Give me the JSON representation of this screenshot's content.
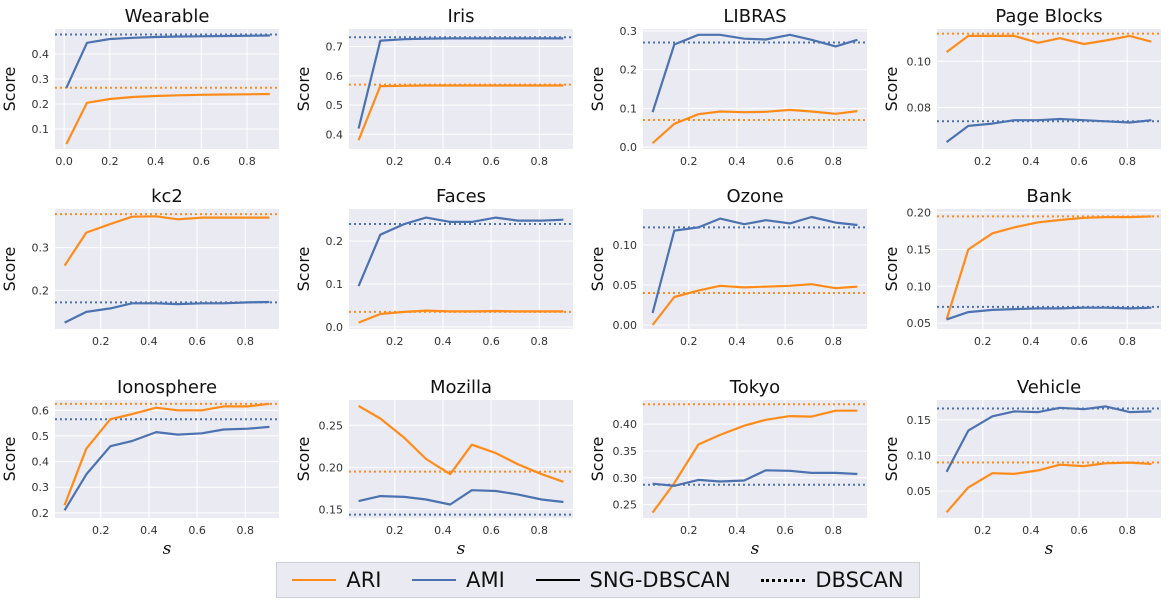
{
  "colors": {
    "ARI": "#ff8c1a",
    "AMI": "#4c72b0",
    "panel_bg": "#eaeaf2",
    "grid": "#ffffff"
  },
  "legend": {
    "entries": [
      {
        "label": "ARI",
        "color": "#ff8c1a",
        "style": "solid"
      },
      {
        "label": "AMI",
        "color": "#4c72b0",
        "style": "solid"
      },
      {
        "label": "SNG-DBSCAN",
        "color": "#000000",
        "style": "solid"
      },
      {
        "label": "DBSCAN",
        "color": "#000000",
        "style": "dotted"
      }
    ]
  },
  "chart_data": [
    {
      "type": "line",
      "title": "Wearable",
      "ylabel": "Score",
      "xlabel": "",
      "xlim": [
        -0.04,
        0.94
      ],
      "ylim": [
        0.02,
        0.5
      ],
      "xticks": [
        0.0,
        0.2,
        0.4,
        0.6,
        0.8
      ],
      "xtick_labels": [
        "0.0",
        "0.2",
        "0.4",
        "0.6",
        "0.8"
      ],
      "yticks": [
        0.1,
        0.2,
        0.3,
        0.4
      ],
      "ytick_labels": [
        "0.1",
        "0.2",
        "0.3",
        "0.4"
      ],
      "x": [
        0.01,
        0.1,
        0.2,
        0.3,
        0.4,
        0.5,
        0.6,
        0.7,
        0.8,
        0.9
      ],
      "series": [
        {
          "name": "ARI",
          "values": [
            0.04,
            0.205,
            0.22,
            0.228,
            0.232,
            0.235,
            0.237,
            0.238,
            0.239,
            0.24
          ]
        },
        {
          "name": "AMI",
          "values": [
            0.265,
            0.445,
            0.46,
            0.465,
            0.468,
            0.47,
            0.471,
            0.472,
            0.473,
            0.474
          ]
        }
      ],
      "dbscan": {
        "ARI": 0.265,
        "AMI": 0.478
      }
    },
    {
      "type": "line",
      "title": "Iris",
      "ylabel": "Score",
      "xlabel": "",
      "xlim": [
        0.01,
        0.94
      ],
      "ylim": [
        0.35,
        0.76
      ],
      "xticks": [
        0.2,
        0.4,
        0.6,
        0.8
      ],
      "xtick_labels": [
        "0.2",
        "0.4",
        "0.6",
        "0.8"
      ],
      "yticks": [
        0.4,
        0.5,
        0.6,
        0.7
      ],
      "ytick_labels": [
        "0.4",
        "0.5",
        "0.6",
        "0.7"
      ],
      "x": [
        0.05,
        0.14,
        0.24,
        0.33,
        0.43,
        0.52,
        0.62,
        0.71,
        0.81,
        0.9
      ],
      "series": [
        {
          "name": "ARI",
          "values": [
            0.38,
            0.565,
            0.566,
            0.567,
            0.567,
            0.567,
            0.567,
            0.567,
            0.567,
            0.567
          ]
        },
        {
          "name": "AMI",
          "values": [
            0.42,
            0.72,
            0.725,
            0.727,
            0.728,
            0.728,
            0.728,
            0.728,
            0.728,
            0.728
          ]
        }
      ],
      "dbscan": {
        "ARI": 0.57,
        "AMI": 0.732
      }
    },
    {
      "type": "line",
      "title": "LIBRAS",
      "ylabel": "Score",
      "xlabel": "",
      "xlim": [
        0.01,
        0.94
      ],
      "ylim": [
        -0.005,
        0.305
      ],
      "xticks": [
        0.2,
        0.4,
        0.6,
        0.8
      ],
      "xtick_labels": [
        "0.2",
        "0.4",
        "0.6",
        "0.8"
      ],
      "yticks": [
        0.0,
        0.1,
        0.2,
        0.3
      ],
      "ytick_labels": [
        "0.0",
        "0.1",
        "0.2",
        "0.3"
      ],
      "x": [
        0.05,
        0.14,
        0.24,
        0.33,
        0.43,
        0.52,
        0.62,
        0.71,
        0.81,
        0.9
      ],
      "series": [
        {
          "name": "ARI",
          "values": [
            0.01,
            0.06,
            0.085,
            0.092,
            0.09,
            0.091,
            0.096,
            0.092,
            0.086,
            0.093
          ]
        },
        {
          "name": "AMI",
          "values": [
            0.09,
            0.265,
            0.29,
            0.29,
            0.28,
            0.278,
            0.29,
            0.277,
            0.26,
            0.277
          ]
        }
      ],
      "dbscan": {
        "ARI": 0.07,
        "AMI": 0.27
      }
    },
    {
      "type": "line",
      "title": "Page Blocks",
      "ylabel": "Score",
      "xlabel": "",
      "xlim": [
        0.01,
        0.94
      ],
      "ylim": [
        0.062,
        0.114
      ],
      "xticks": [
        0.2,
        0.4,
        0.6,
        0.8
      ],
      "xtick_labels": [
        "0.2",
        "0.4",
        "0.6",
        "0.8"
      ],
      "yticks": [
        0.08,
        0.1
      ],
      "ytick_labels": [
        "0.08",
        "0.10"
      ],
      "x": [
        0.05,
        0.14,
        0.24,
        0.33,
        0.43,
        0.52,
        0.62,
        0.71,
        0.81,
        0.9
      ],
      "series": [
        {
          "name": "ARI",
          "values": [
            0.104,
            0.111,
            0.111,
            0.111,
            0.108,
            0.11,
            0.1075,
            0.109,
            0.111,
            0.1085
          ]
        },
        {
          "name": "AMI",
          "values": [
            0.065,
            0.072,
            0.073,
            0.0745,
            0.0745,
            0.075,
            0.0745,
            0.074,
            0.0735,
            0.0745
          ]
        }
      ],
      "dbscan": {
        "ARI": 0.112,
        "AMI": 0.074
      }
    },
    {
      "type": "line",
      "title": "kc2",
      "ylabel": "Score",
      "xlabel": "",
      "xlim": [
        0.01,
        0.94
      ],
      "ylim": [
        0.11,
        0.39
      ],
      "xticks": [
        0.2,
        0.4,
        0.6,
        0.8
      ],
      "xtick_labels": [
        "0.2",
        "0.4",
        "0.6",
        "0.8"
      ],
      "yticks": [
        0.2,
        0.3
      ],
      "ytick_labels": [
        "0.2",
        "0.3"
      ],
      "x": [
        0.05,
        0.14,
        0.24,
        0.33,
        0.43,
        0.52,
        0.62,
        0.71,
        0.81,
        0.9
      ],
      "series": [
        {
          "name": "ARI",
          "values": [
            0.258,
            0.335,
            0.355,
            0.372,
            0.373,
            0.366,
            0.37,
            0.37,
            0.37,
            0.37
          ]
        },
        {
          "name": "AMI",
          "values": [
            0.125,
            0.15,
            0.158,
            0.17,
            0.17,
            0.168,
            0.17,
            0.17,
            0.172,
            0.173
          ]
        }
      ],
      "dbscan": {
        "ARI": 0.378,
        "AMI": 0.172
      }
    },
    {
      "type": "line",
      "title": "Faces",
      "ylabel": "Score",
      "xlabel": "",
      "xlim": [
        0.01,
        0.94
      ],
      "ylim": [
        -0.005,
        0.275
      ],
      "xticks": [
        0.2,
        0.4,
        0.6,
        0.8
      ],
      "xtick_labels": [
        "0.2",
        "0.4",
        "0.6",
        "0.8"
      ],
      "yticks": [
        0.0,
        0.1,
        0.2
      ],
      "ytick_labels": [
        "0.0",
        "0.1",
        "0.2"
      ],
      "x": [
        0.05,
        0.14,
        0.24,
        0.33,
        0.43,
        0.52,
        0.62,
        0.71,
        0.81,
        0.9
      ],
      "series": [
        {
          "name": "ARI",
          "values": [
            0.01,
            0.03,
            0.035,
            0.038,
            0.036,
            0.036,
            0.037,
            0.036,
            0.036,
            0.036
          ]
        },
        {
          "name": "AMI",
          "values": [
            0.095,
            0.215,
            0.24,
            0.255,
            0.245,
            0.245,
            0.255,
            0.248,
            0.248,
            0.25
          ]
        }
      ],
      "dbscan": {
        "ARI": 0.035,
        "AMI": 0.24
      }
    },
    {
      "type": "line",
      "title": "Ozone",
      "ylabel": "Score",
      "xlabel": "",
      "xlim": [
        0.01,
        0.94
      ],
      "ylim": [
        -0.005,
        0.145
      ],
      "xticks": [
        0.2,
        0.4,
        0.6,
        0.8
      ],
      "xtick_labels": [
        "0.2",
        "0.4",
        "0.6",
        "0.8"
      ],
      "yticks": [
        0.0,
        0.05,
        0.1
      ],
      "ytick_labels": [
        "0.00",
        "0.05",
        "0.10"
      ],
      "x": [
        0.05,
        0.14,
        0.24,
        0.33,
        0.43,
        0.52,
        0.62,
        0.71,
        0.81,
        0.9
      ],
      "series": [
        {
          "name": "ARI",
          "values": [
            0.0,
            0.035,
            0.043,
            0.049,
            0.047,
            0.048,
            0.049,
            0.051,
            0.046,
            0.048
          ]
        },
        {
          "name": "AMI",
          "values": [
            0.015,
            0.118,
            0.122,
            0.133,
            0.126,
            0.131,
            0.127,
            0.135,
            0.128,
            0.125
          ]
        }
      ],
      "dbscan": {
        "ARI": 0.04,
        "AMI": 0.122
      }
    },
    {
      "type": "line",
      "title": "Bank",
      "ylabel": "Score",
      "xlabel": "",
      "xlim": [
        0.01,
        0.94
      ],
      "ylim": [
        0.042,
        0.205
      ],
      "xticks": [
        0.2,
        0.4,
        0.6,
        0.8
      ],
      "xtick_labels": [
        "0.2",
        "0.4",
        "0.6",
        "0.8"
      ],
      "yticks": [
        0.05,
        0.1,
        0.15,
        0.2
      ],
      "ytick_labels": [
        "0.05",
        "0.10",
        "0.15",
        "0.20"
      ],
      "x": [
        0.05,
        0.14,
        0.24,
        0.33,
        0.43,
        0.52,
        0.62,
        0.71,
        0.81,
        0.9
      ],
      "series": [
        {
          "name": "ARI",
          "values": [
            0.055,
            0.15,
            0.172,
            0.18,
            0.187,
            0.19,
            0.193,
            0.194,
            0.194,
            0.195
          ]
        },
        {
          "name": "AMI",
          "values": [
            0.055,
            0.065,
            0.068,
            0.069,
            0.07,
            0.07,
            0.071,
            0.071,
            0.07,
            0.071
          ]
        }
      ],
      "dbscan": {
        "ARI": 0.195,
        "AMI": 0.072
      }
    },
    {
      "type": "line",
      "title": "Ionosphere",
      "ylabel": "Score",
      "xlabel": "s",
      "xlim": [
        0.01,
        0.94
      ],
      "ylim": [
        0.18,
        0.64
      ],
      "xticks": [
        0.2,
        0.4,
        0.6,
        0.8
      ],
      "xtick_labels": [
        "0.2",
        "0.4",
        "0.6",
        "0.8"
      ],
      "yticks": [
        0.2,
        0.3,
        0.4,
        0.5,
        0.6
      ],
      "ytick_labels": [
        "0.2",
        "0.3",
        "0.4",
        "0.5",
        "0.6"
      ],
      "x": [
        0.05,
        0.14,
        0.24,
        0.33,
        0.43,
        0.52,
        0.62,
        0.71,
        0.81,
        0.9
      ],
      "series": [
        {
          "name": "ARI",
          "values": [
            0.23,
            0.45,
            0.565,
            0.585,
            0.61,
            0.6,
            0.6,
            0.615,
            0.615,
            0.625
          ]
        },
        {
          "name": "AMI",
          "values": [
            0.21,
            0.35,
            0.46,
            0.48,
            0.515,
            0.505,
            0.51,
            0.525,
            0.528,
            0.535
          ]
        }
      ],
      "dbscan": {
        "ARI": 0.625,
        "AMI": 0.565
      }
    },
    {
      "type": "line",
      "title": "Mozilla",
      "ylabel": "Score",
      "xlabel": "s",
      "xlim": [
        0.01,
        0.94
      ],
      "ylim": [
        0.14,
        0.28
      ],
      "xticks": [
        0.2,
        0.4,
        0.6,
        0.8
      ],
      "xtick_labels": [
        "0.2",
        "0.4",
        "0.6",
        "0.8"
      ],
      "yticks": [
        0.15,
        0.2,
        0.25
      ],
      "ytick_labels": [
        "0.15",
        "0.20",
        "0.25"
      ],
      "x": [
        0.05,
        0.14,
        0.24,
        0.33,
        0.43,
        0.52,
        0.62,
        0.71,
        0.81,
        0.9
      ],
      "series": [
        {
          "name": "ARI",
          "values": [
            0.273,
            0.258,
            0.235,
            0.21,
            0.192,
            0.227,
            0.217,
            0.204,
            0.192,
            0.183
          ]
        },
        {
          "name": "AMI",
          "values": [
            0.16,
            0.166,
            0.165,
            0.162,
            0.156,
            0.173,
            0.172,
            0.168,
            0.162,
            0.159
          ]
        }
      ],
      "dbscan": {
        "ARI": 0.195,
        "AMI": 0.144
      }
    },
    {
      "type": "line",
      "title": "Tokyo",
      "ylabel": "Score",
      "xlabel": "s",
      "xlim": [
        0.01,
        0.94
      ],
      "ylim": [
        0.225,
        0.445
      ],
      "xticks": [
        0.2,
        0.4,
        0.6,
        0.8
      ],
      "xtick_labels": [
        "0.2",
        "0.4",
        "0.6",
        "0.8"
      ],
      "yticks": [
        0.25,
        0.3,
        0.35,
        0.4
      ],
      "ytick_labels": [
        "0.25",
        "0.30",
        "0.35",
        "0.40"
      ],
      "x": [
        0.05,
        0.14,
        0.24,
        0.33,
        0.43,
        0.52,
        0.62,
        0.71,
        0.81,
        0.9
      ],
      "series": [
        {
          "name": "ARI",
          "values": [
            0.235,
            0.29,
            0.362,
            0.38,
            0.397,
            0.408,
            0.415,
            0.414,
            0.425,
            0.425
          ]
        },
        {
          "name": "AMI",
          "values": [
            0.289,
            0.285,
            0.296,
            0.293,
            0.295,
            0.314,
            0.313,
            0.309,
            0.309,
            0.307
          ]
        }
      ],
      "dbscan": {
        "ARI": 0.437,
        "AMI": 0.287
      }
    },
    {
      "type": "line",
      "title": "Vehicle",
      "ylabel": "Score",
      "xlabel": "s",
      "xlim": [
        0.01,
        0.94
      ],
      "ylim": [
        0.012,
        0.178
      ],
      "xticks": [
        0.2,
        0.4,
        0.6,
        0.8
      ],
      "xtick_labels": [
        "0.2",
        "0.4",
        "0.6",
        "0.8"
      ],
      "yticks": [
        0.05,
        0.1,
        0.15
      ],
      "ytick_labels": [
        "0.05",
        "0.10",
        "0.15"
      ],
      "x": [
        0.05,
        0.14,
        0.24,
        0.33,
        0.43,
        0.52,
        0.62,
        0.71,
        0.81,
        0.9
      ],
      "series": [
        {
          "name": "ARI",
          "values": [
            0.02,
            0.055,
            0.075,
            0.074,
            0.079,
            0.087,
            0.085,
            0.089,
            0.09,
            0.088
          ]
        },
        {
          "name": "AMI",
          "values": [
            0.077,
            0.135,
            0.155,
            0.162,
            0.161,
            0.167,
            0.165,
            0.169,
            0.161,
            0.162
          ]
        }
      ],
      "dbscan": {
        "ARI": 0.09,
        "AMI": 0.166
      }
    }
  ]
}
